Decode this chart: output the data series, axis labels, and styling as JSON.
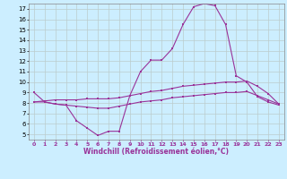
{
  "xlabel": "Windchill (Refroidissement éolien,°C)",
  "bg_color": "#cceeff",
  "line_color": "#993399",
  "grid_color": "#bbcccc",
  "axis_bg": "#cceeff",
  "xlim": [
    -0.5,
    23.5
  ],
  "ylim": [
    4.5,
    17.5
  ],
  "xticks": [
    0,
    1,
    2,
    3,
    4,
    5,
    6,
    7,
    8,
    9,
    10,
    11,
    12,
    13,
    14,
    15,
    16,
    17,
    18,
    19,
    20,
    21,
    22,
    23
  ],
  "yticks": [
    5,
    6,
    7,
    8,
    9,
    10,
    11,
    12,
    13,
    14,
    15,
    16,
    17
  ],
  "curve1": [
    9.0,
    8.1,
    7.9,
    7.8,
    6.3,
    5.6,
    4.9,
    5.3,
    5.3,
    8.7,
    11.0,
    12.1,
    12.1,
    13.2,
    15.5,
    17.2,
    17.5,
    17.3,
    15.5,
    10.6,
    10.0,
    8.6,
    8.1,
    7.8
  ],
  "curve2": [
    8.1,
    8.1,
    7.9,
    7.8,
    7.7,
    7.6,
    7.5,
    7.5,
    7.7,
    7.9,
    8.1,
    8.2,
    8.3,
    8.5,
    8.6,
    8.7,
    8.8,
    8.9,
    9.0,
    9.0,
    9.1,
    8.7,
    8.3,
    7.9
  ],
  "curve3": [
    8.1,
    8.2,
    8.3,
    8.3,
    8.3,
    8.4,
    8.4,
    8.4,
    8.5,
    8.7,
    8.9,
    9.1,
    9.2,
    9.4,
    9.6,
    9.7,
    9.8,
    9.9,
    10.0,
    10.0,
    10.1,
    9.6,
    8.9,
    7.9
  ],
  "xlabel_color": "#993399",
  "tick_label_color_x": "#993399",
  "tick_label_color_y": "#000000",
  "xlabel_fontsize": 5.5,
  "tick_fontsize_x": 4.5,
  "tick_fontsize_y": 5.0,
  "linewidth": 0.8,
  "markersize": 2.0
}
